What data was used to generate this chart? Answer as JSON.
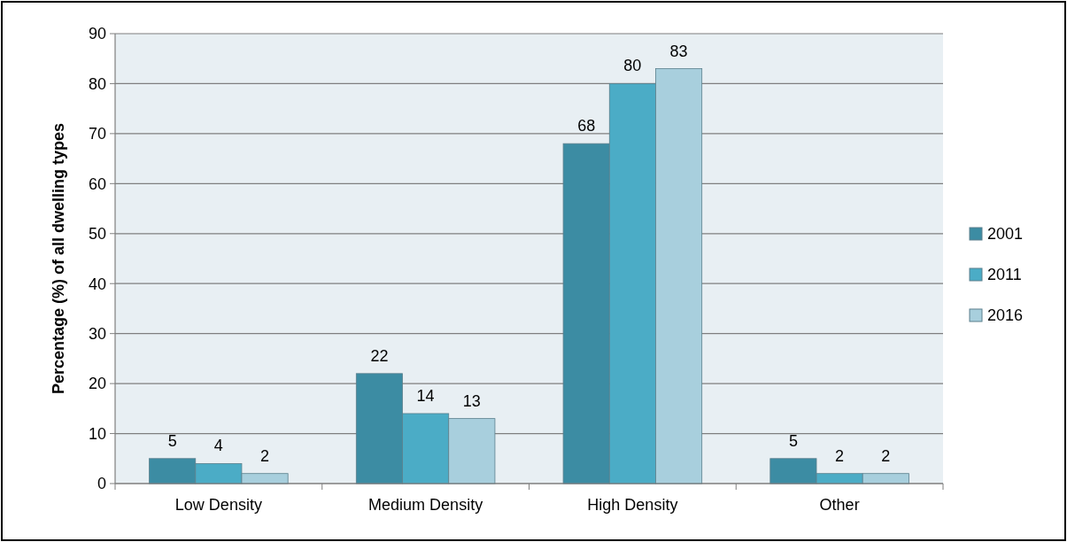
{
  "chart_data": {
    "type": "bar",
    "ylabel": "Percentage (%) of all dwelling types",
    "categories": [
      "Low Density",
      "Medium Density",
      "High Density",
      "Other"
    ],
    "series": [
      {
        "name": "2001",
        "color": "#3c8ca3",
        "values": [
          5,
          22,
          68,
          5
        ]
      },
      {
        "name": "2011",
        "color": "#4bacc6",
        "values": [
          4,
          14,
          80,
          2
        ]
      },
      {
        "name": "2016",
        "color": "#a8cfdd",
        "values": [
          2,
          13,
          83,
          2
        ]
      }
    ],
    "ylim": [
      0,
      90
    ],
    "yticks": [
      0,
      10,
      20,
      30,
      40,
      50,
      60,
      70,
      80,
      90
    ],
    "grid": "y",
    "legend": "right",
    "data_labels": true
  }
}
